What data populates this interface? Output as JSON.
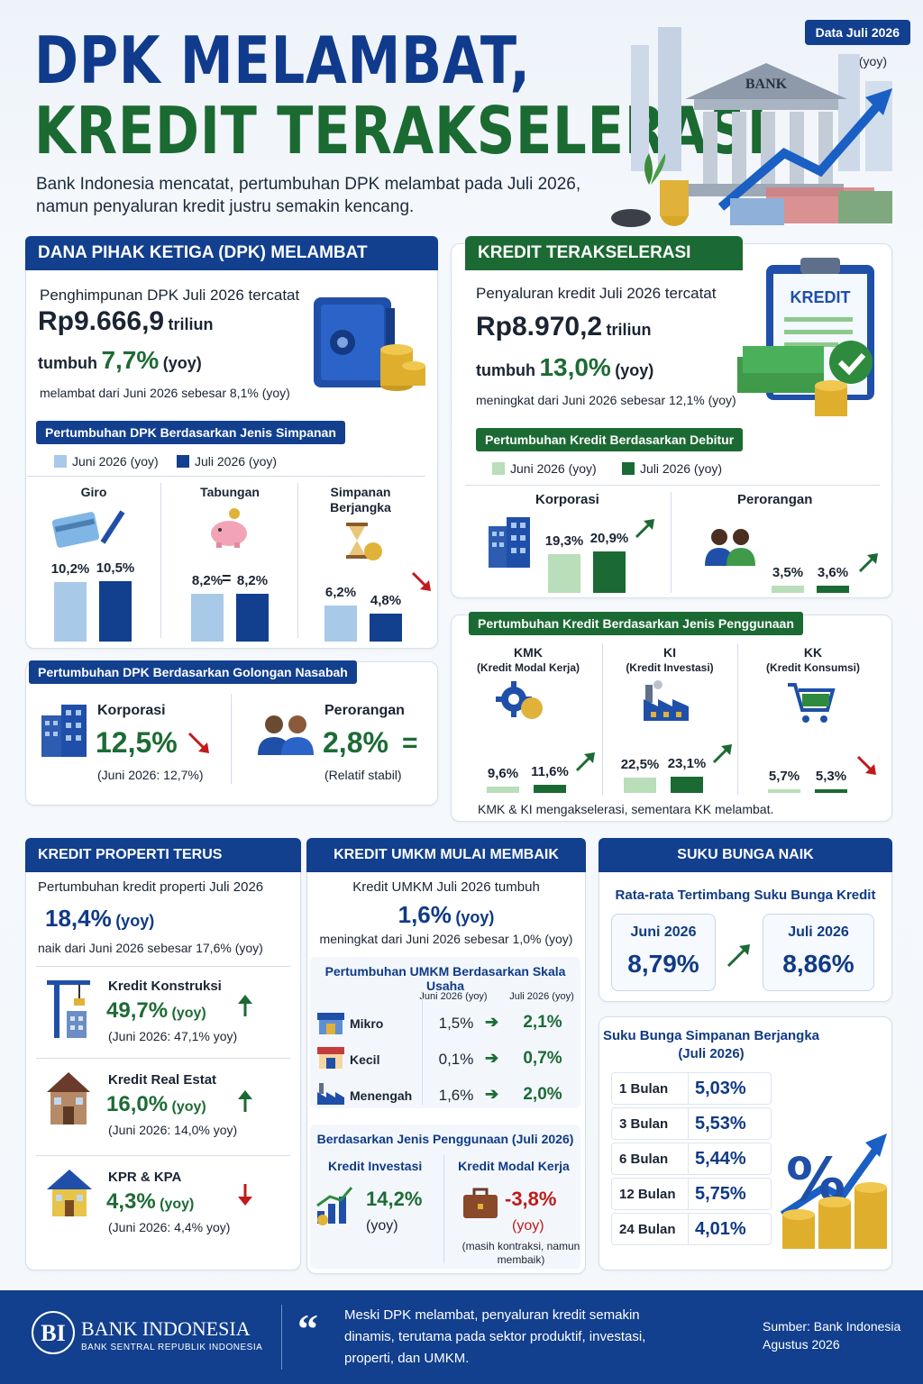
{
  "header": {
    "title_line1": "DPK MELAMBAT,",
    "title_line2": "KREDIT TERAKSELERASI",
    "subtitle": "Bank Indonesia mencatat, pertumbuhan DPK melambat pada Juli 2026, namun penyaluran kredit justru semakin kencang.",
    "badge": "Data Juli 2026",
    "badge_note": "(yoy)",
    "bank_sign": "BANK"
  },
  "dpk": {
    "title": "DANA PIHAK KETIGA (DPK) MELAMBAT",
    "intro": "Penghimpunan DPK Juli 2026 tercatat",
    "amount": "Rp9.666,9",
    "amount_unit": "triliun",
    "growth_prefix": "tumbuh",
    "growth": "7,7%",
    "growth_suffix": "(yoy)",
    "note": "melambat dari Juni 2026 sebesar 8,1% (yoy)",
    "by_type": {
      "title": "Pertumbuhan DPK Berdasarkan Jenis Simpanan",
      "legend_june": "Juni 2026 (yoy)",
      "legend_july": "Juli 2026 (yoy)",
      "items": [
        {
          "name": "Giro",
          "june": 10.2,
          "july": 10.5,
          "june_label": "10,2%",
          "july_label": "10,5%"
        },
        {
          "name": "Tabungan",
          "june": 8.2,
          "july": 8.2,
          "june_label": "8,2%",
          "july_label": "8,2%",
          "mid": "="
        },
        {
          "name": "Simpanan Berjangka",
          "june": 6.2,
          "july": 4.8,
          "june_label": "6,2%",
          "july_label": "4,8%"
        }
      ]
    },
    "by_customer": {
      "title": "Pertumbuhan DPK Berdasarkan Golongan Nasabah",
      "corp_name": "Korporasi",
      "corp_value": "12,5%",
      "corp_note": "(Juni 2026: 12,7%)",
      "ind_name": "Perorangan",
      "ind_value": "2,8%",
      "ind_symbol": "=",
      "ind_note": "(Relatif stabil)"
    }
  },
  "kredit": {
    "title": "KREDIT TERAKSELERASI",
    "clipboard": "KREDIT",
    "intro": "Penyaluran kredit Juli 2026 tercatat",
    "amount": "Rp8.970,2",
    "amount_unit": "triliun",
    "growth_prefix": "tumbuh",
    "growth": "13,0%",
    "growth_suffix": "(yoy)",
    "note": "meningkat dari Juni 2026 sebesar 12,1% (yoy)",
    "by_debtor": {
      "title": "Pertumbuhan Kredit Berdasarkan Debitur",
      "legend_june": "Juni 2026 (yoy)",
      "legend_july": "Juli 2026 (yoy)",
      "items": [
        {
          "name": "Korporasi",
          "june": 19.3,
          "july": 20.9,
          "june_label": "19,3%",
          "july_label": "20,9%"
        },
        {
          "name": "Perorangan",
          "june": 3.5,
          "july": 3.6,
          "june_label": "3,5%",
          "july_label": "3,6%"
        }
      ]
    },
    "by_usage": {
      "title": "Pertumbuhan Kredit Berdasarkan Jenis Penggunaan",
      "items": [
        {
          "name": "KMK",
          "desc": "(Kredit Modal Kerja)",
          "june": 9.6,
          "july": 11.6,
          "june_label": "9,6%",
          "july_label": "11,6%"
        },
        {
          "name": "KI",
          "desc": "(Kredit Investasi)",
          "june": 22.5,
          "july": 23.1,
          "june_label": "22,5%",
          "july_label": "23,1%"
        },
        {
          "name": "KK",
          "desc": "(Kredit Konsumsi)",
          "june": 5.7,
          "july": 5.3,
          "june_label": "5,7%",
          "july_label": "5,3%"
        }
      ],
      "note": "KMK & KI mengakselerasi, sementara KK melambat."
    }
  },
  "properti": {
    "title": "KREDIT PROPERTI TERUS MENGUAT",
    "intro": "Pertumbuhan kredit properti Juli 2026",
    "value": "18,4%",
    "value_suffix": "(yoy)",
    "note": "naik dari Juni 2026 sebesar 17,6% (yoy)",
    "items": [
      {
        "name": "Kredit Konstruksi",
        "value": "49,7%",
        "suffix": "(yoy)",
        "note": "(Juni 2026: 47,1% yoy)"
      },
      {
        "name": "Kredit Real Estat",
        "value": "16,0%",
        "suffix": "(yoy)",
        "note": "(Juni 2026: 14,0% yoy)"
      },
      {
        "name": "KPR & KPA",
        "value": "4,3%",
        "suffix": "(yoy)",
        "note": "(Juni 2026: 4,4% yoy)"
      }
    ]
  },
  "umkm": {
    "title": "KREDIT UMKM MULAI MEMBAIK",
    "intro": "Kredit UMKM Juli 2026 tumbuh",
    "value": "1,6%",
    "value_suffix": "(yoy)",
    "note": "meningkat dari Juni 2026 sebesar 1,0% (yoy)",
    "scale": {
      "title": "Pertumbuhan UMKM Berdasarkan Skala Usaha",
      "col_june": "Juni 2026 (yoy)",
      "col_july": "Juli 2026 (yoy)",
      "rows": [
        {
          "name": "Mikro",
          "june": "1,5%",
          "july": "2,1%"
        },
        {
          "name": "Kecil",
          "june": "0,1%",
          "july": "0,7%"
        },
        {
          "name": "Menengah",
          "june": "1,6%",
          "july": "2,0%"
        }
      ]
    },
    "usage": {
      "title": "Berdasarkan Jenis Penggunaan (Juli 2026)",
      "ki_name": "Kredit Investasi",
      "ki_value": "14,2%",
      "ki_suffix": "(yoy)",
      "kmk_name": "Kredit Modal Kerja",
      "kmk_value": "-3,8%",
      "kmk_suffix": "(yoy)",
      "kmk_note": "(masih kontraksi, namun membaik)"
    }
  },
  "suku_bunga": {
    "title": "SUKU BUNGA NAIK",
    "subtitle": "Rata-rata Tertimbang Suku Bunga Kredit",
    "june_label": "Juni 2026",
    "june_value": "8,79%",
    "july_label": "Juli 2026",
    "july_value": "8,86%",
    "deposit": {
      "title": "Suku Bunga Simpanan Berjangka (Juli 2026)",
      "rows": [
        {
          "tenor": "1 Bulan",
          "rate": "5,03%"
        },
        {
          "tenor": "3 Bulan",
          "rate": "5,53%"
        },
        {
          "tenor": "6 Bulan",
          "rate": "5,44%"
        },
        {
          "tenor": "12 Bulan",
          "rate": "5,75%"
        },
        {
          "tenor": "24 Bulan",
          "rate": "4,01%"
        }
      ]
    }
  },
  "footer": {
    "logo_name": "BANK INDONESIA",
    "logo_sub": "BANK SENTRAL REPUBLIK INDONESIA",
    "quote": "Meski DPK melambat, penyaluran kredit semakin dinamis, terutama pada sektor produktif, investasi, properti, dan UMKM.",
    "source": "Sumber: Bank Indonesia",
    "source_date": "Agustus 2026"
  },
  "colors": {
    "navy": "#123f8e",
    "green": "#1b6a33",
    "red": "#c01a1a"
  }
}
